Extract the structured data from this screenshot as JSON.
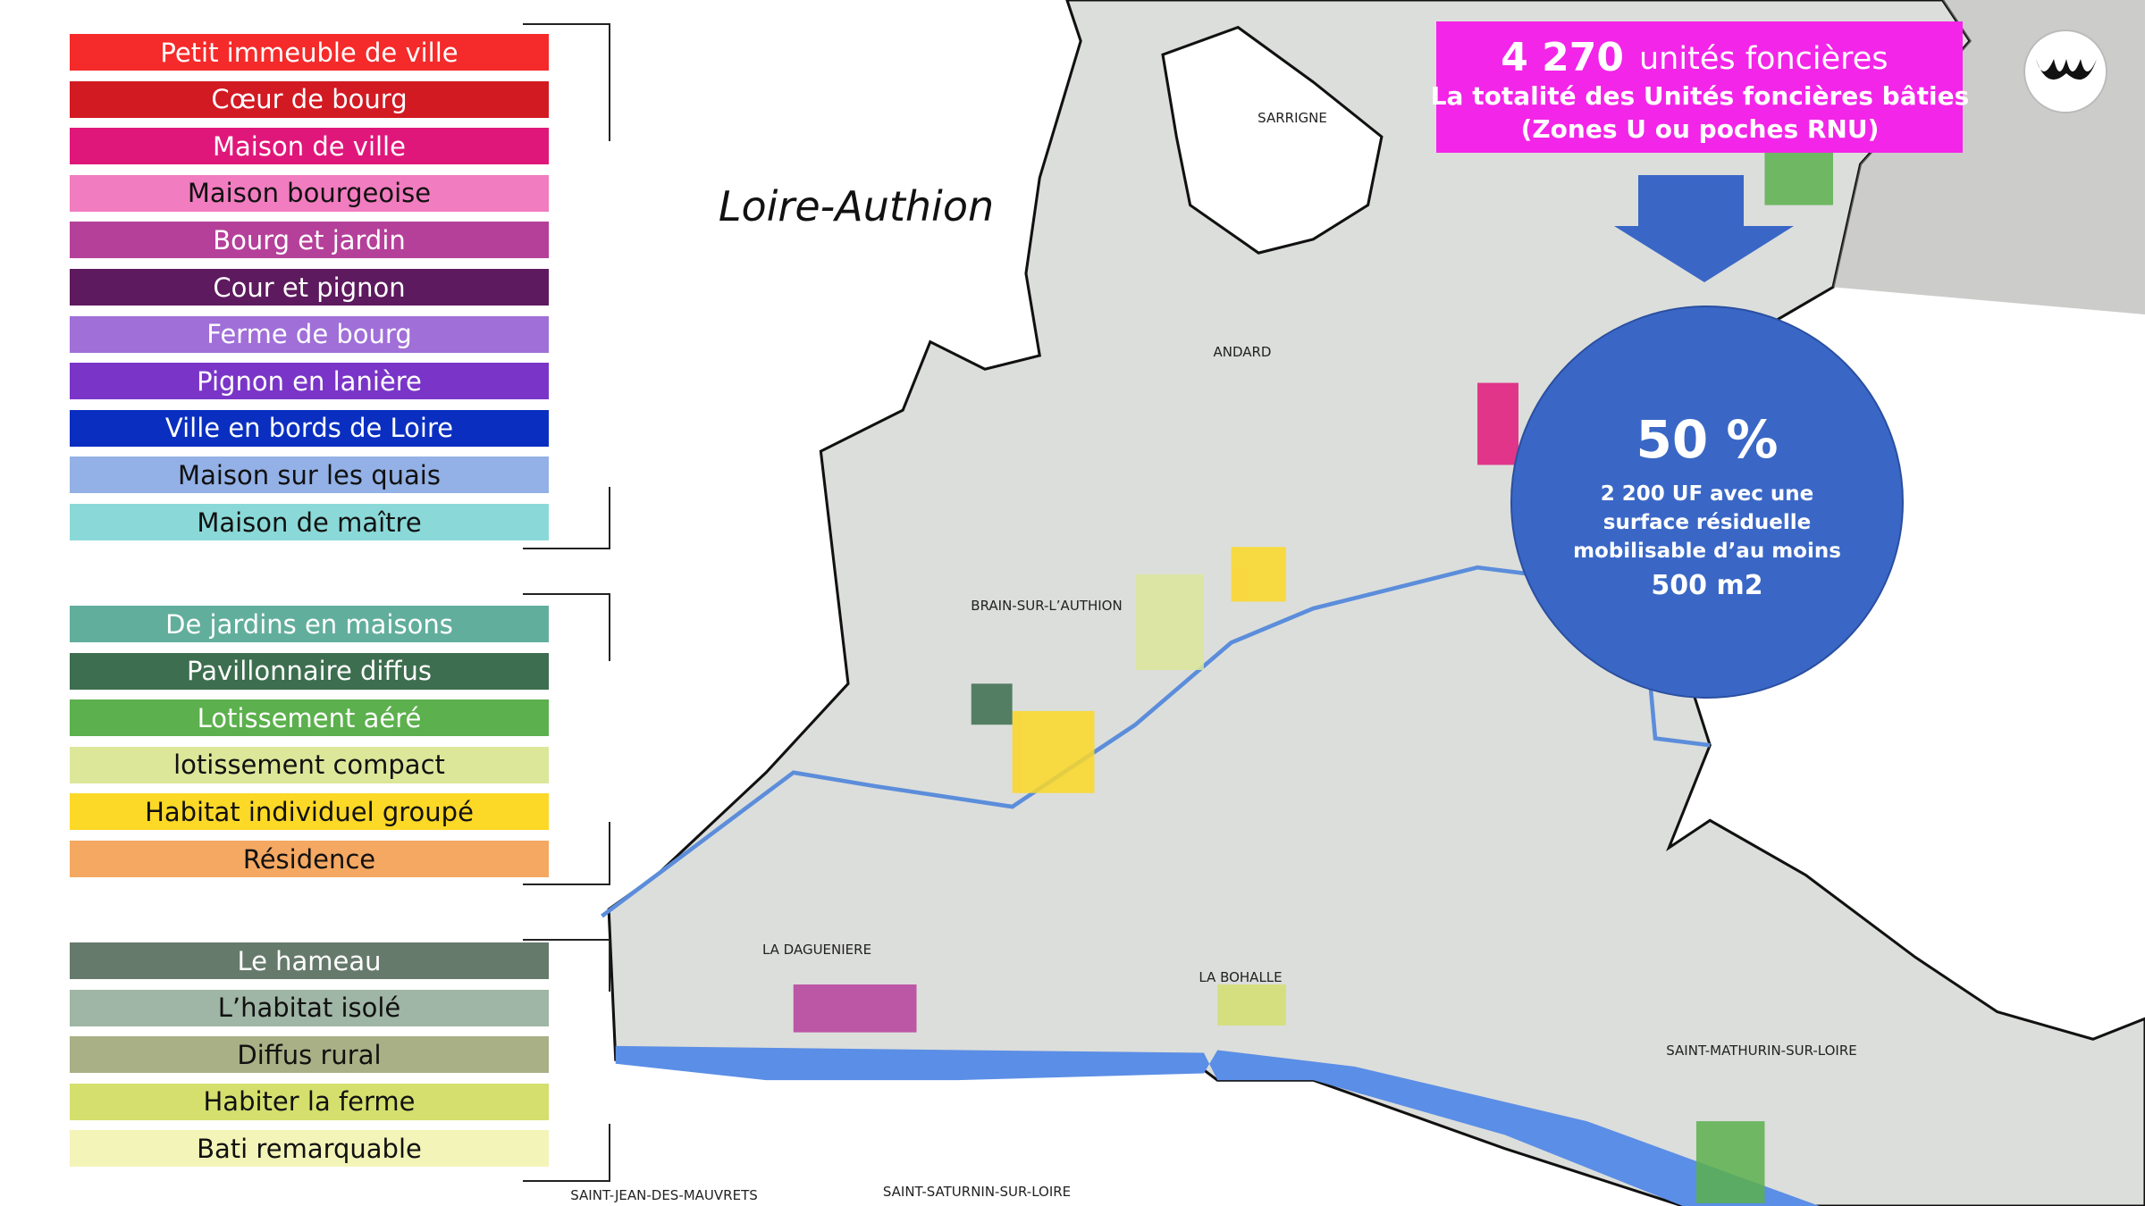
{
  "legend": {
    "groups": [
      {
        "items": [
          {
            "label": "Petit immeuble de ville",
            "color": "#f52a2a"
          },
          {
            "label": "Cœur de bourg",
            "color": "#d21a22"
          },
          {
            "label": "Maison de ville",
            "color": "#e0177a"
          },
          {
            "label": "Maison bourgeoise",
            "color": "#f27cc0"
          },
          {
            "label": "Bourg et jardin",
            "color": "#b5409a"
          },
          {
            "label": "Cour et pignon",
            "color": "#5e1a5e"
          },
          {
            "label": "Ferme de bourg",
            "color": "#a06fd8"
          },
          {
            "label": "Pignon en lanière",
            "color": "#7a35c8"
          },
          {
            "label": "Ville en bords de Loire",
            "color": "#0a2fc0"
          },
          {
            "label": "Maison sur les quais",
            "color": "#93b1e6"
          },
          {
            "label": "Maison de maître",
            "color": "#8ad9d8"
          }
        ]
      },
      {
        "items": [
          {
            "label": "De jardins en maisons",
            "color": "#62ae9c"
          },
          {
            "label": "Pavillonnaire diffus",
            "color": "#3d6e4f"
          },
          {
            "label": "Lotissement aéré",
            "color": "#5cb04d"
          },
          {
            "label": "lotissement compact",
            "color": "#dce79a"
          },
          {
            "label": "Habitat individuel groupé",
            "color": "#fcd827"
          },
          {
            "label": "Résidence",
            "color": "#f4a862"
          }
        ]
      },
      {
        "items": [
          {
            "label": "Le hameau",
            "color": "#667a6c"
          },
          {
            "label": "L’habitat isolé",
            "color": "#9fb5a5"
          },
          {
            "label": "Diffus rural",
            "color": "#a9b085"
          },
          {
            "label": "Habiter la ferme",
            "color": "#d4df6e"
          },
          {
            "label": "Bati remarquable",
            "color": "#f3f4b8"
          }
        ]
      }
    ]
  },
  "map": {
    "title": "Loire-Authion",
    "places": [
      "SARRIGNE",
      "ANDARD",
      "BRAIN-SUR-L’AUTHION",
      "LA DAGUENIERE",
      "LA BOHALLE",
      "SAINT-MATHURIN-SUR-LOIRE",
      "SAINT-JEAN-DES-MAUVRETS",
      "SAINT-SATURNIN-SUR-LOIRE"
    ]
  },
  "callout": {
    "count": "4 270",
    "unit": "unités foncières",
    "line1": "La totalité des Unités foncières bâties",
    "line2": "(Zones U ou poches RNU)"
  },
  "circle": {
    "percent": "50 %",
    "lines": [
      "2 200 UF avec une",
      "surface résiduelle",
      "mobilisable d’au moins"
    ],
    "area": "500 m2"
  }
}
